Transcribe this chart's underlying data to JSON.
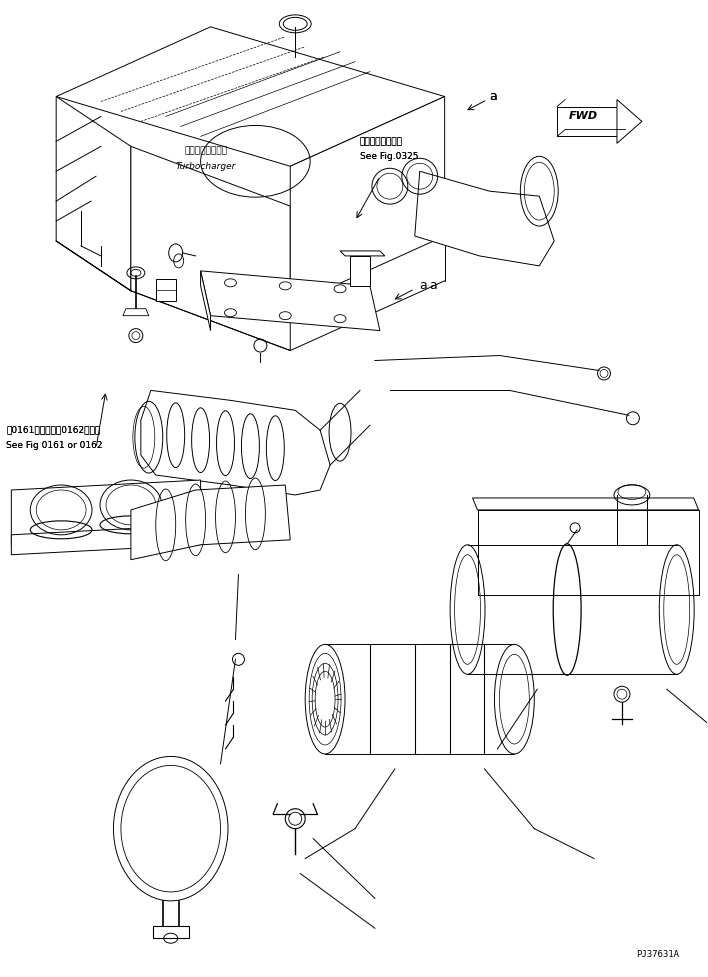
{
  "fig_width": 7.08,
  "fig_height": 9.77,
  "dpi": 100,
  "bg_color": "#ffffff",
  "lc": "#000000",
  "lw": 0.7,
  "texts": {
    "turbo_ja": "ターボチャージャ",
    "turbo_en": "Turbocharger",
    "fig0325_ja": "第０３２５図参照",
    "fig0325_en": "See Fig.0325",
    "fig0161_ja": "第0161図または第0162図参照",
    "fig0161_en": "See Fig 0161 or 0162",
    "label_a": "a",
    "part_num": "PJ37631A"
  }
}
